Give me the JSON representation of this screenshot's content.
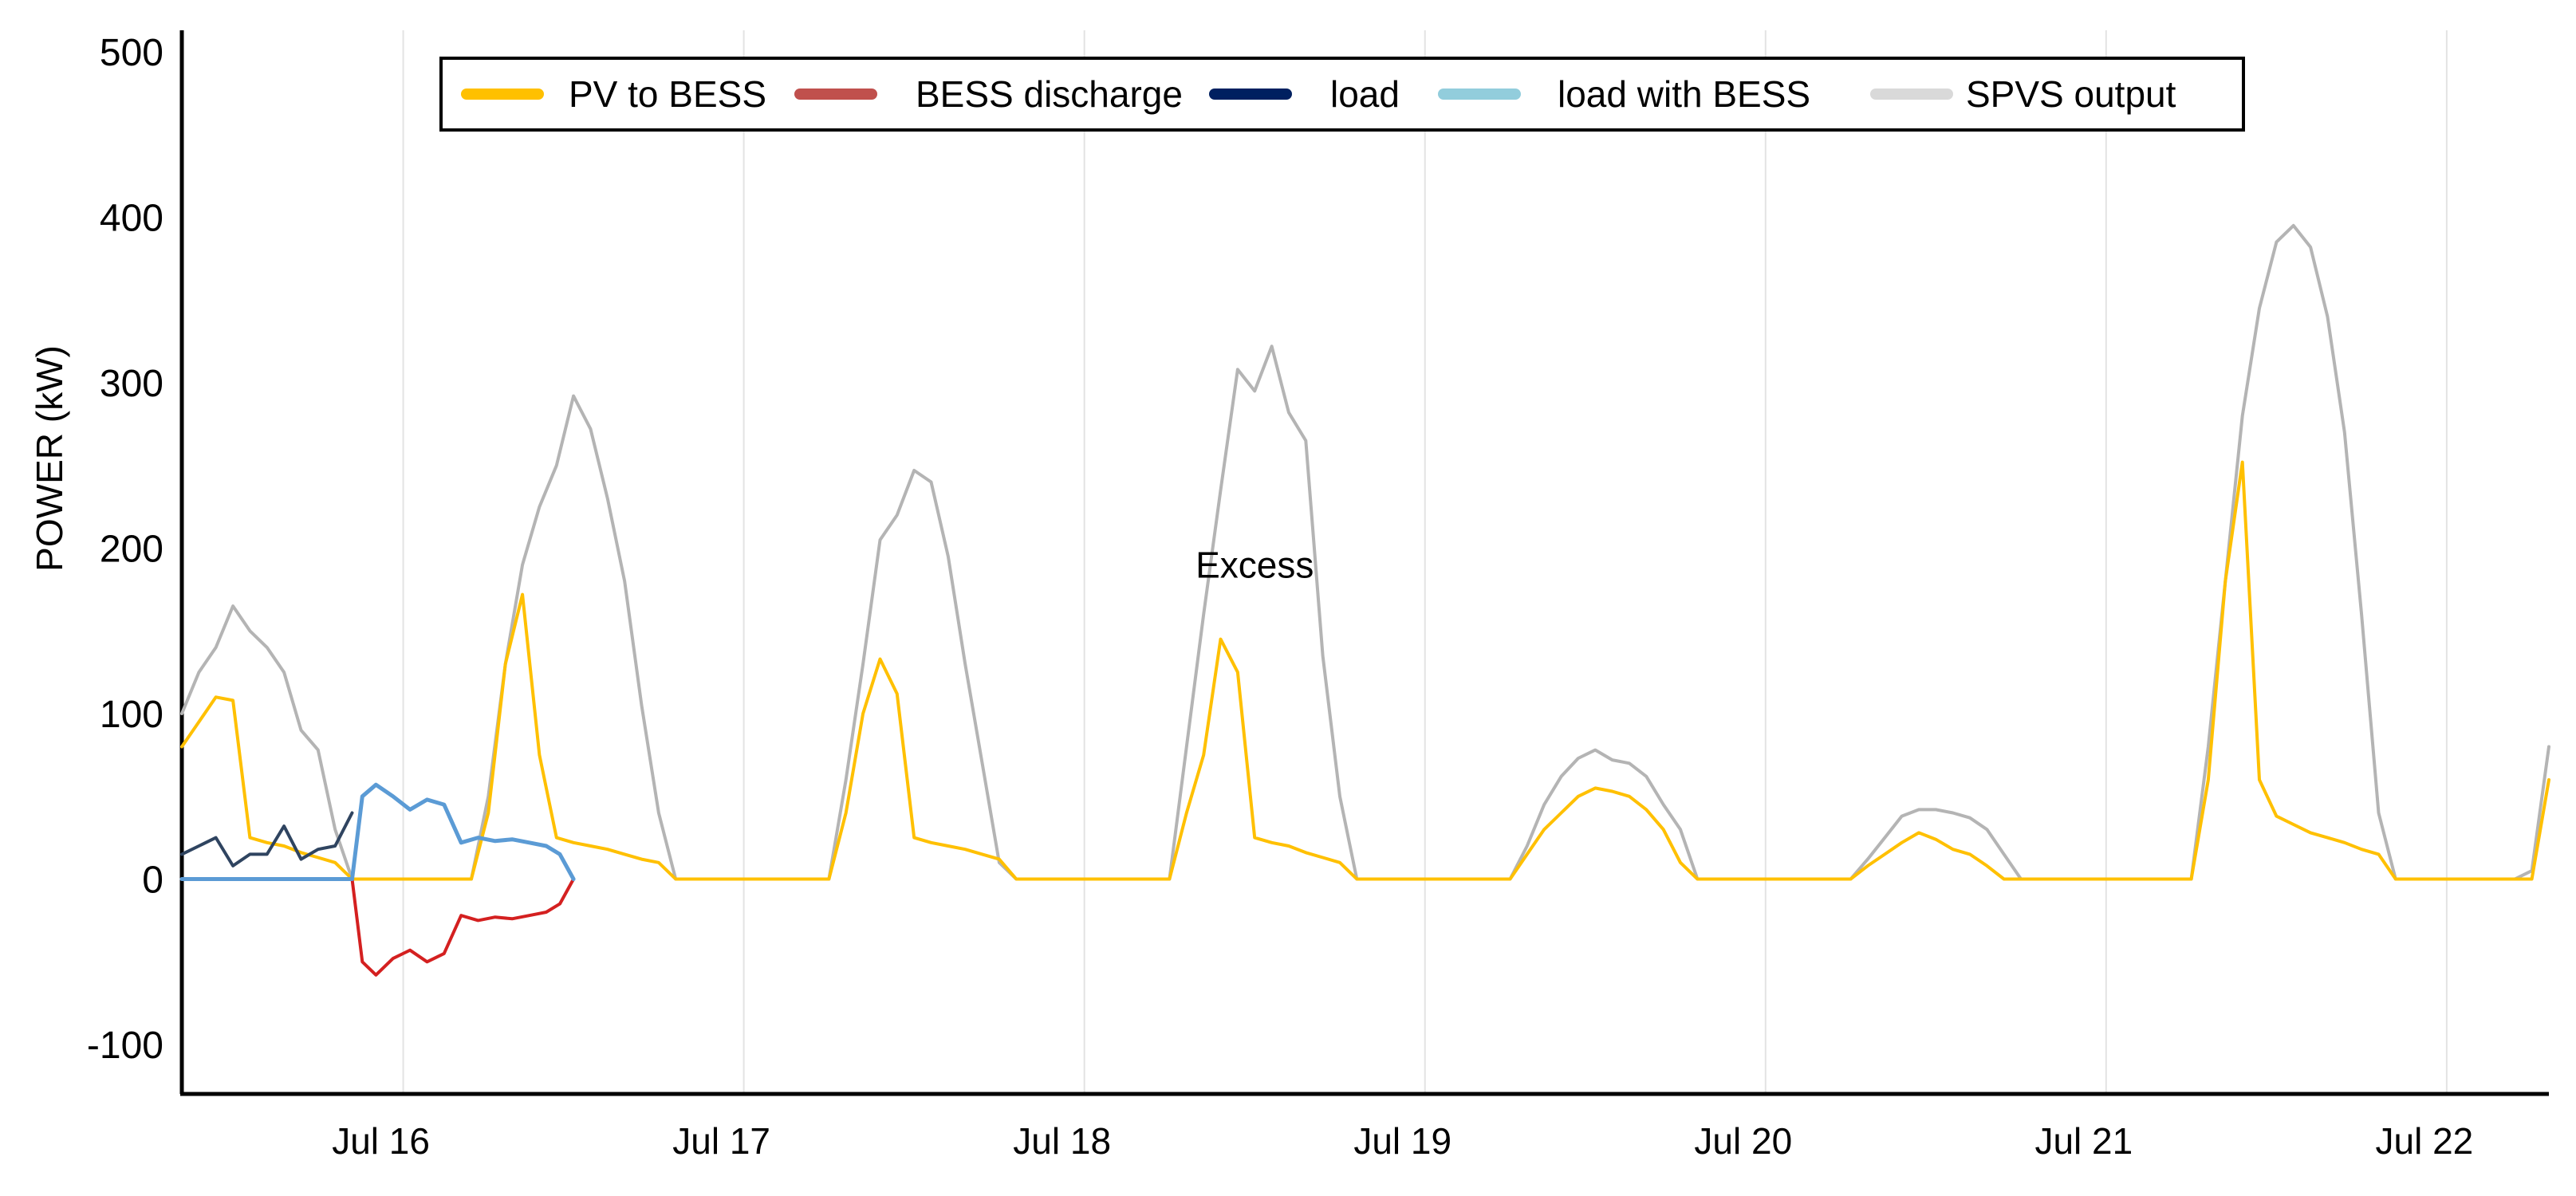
{
  "chart_data": {
    "type": "line",
    "title": "",
    "xlabel": "",
    "ylabel": "POWER (kW)",
    "ylim": [
      -100,
      500
    ],
    "yticks": [
      {
        "value": 500,
        "label": "500"
      },
      {
        "value": 400,
        "label": "400"
      },
      {
        "value": 300,
        "label": "300"
      },
      {
        "value": 200,
        "label": "200"
      },
      {
        "value": 100,
        "label": "100"
      },
      {
        "value": 0,
        "label": "0"
      },
      {
        "value": -100,
        "label": "-100"
      }
    ],
    "xlim": [
      15.35,
      22.3
    ],
    "xticks": [
      {
        "value": 16,
        "label": "Jul 16"
      },
      {
        "value": 17,
        "label": "Jul 17"
      },
      {
        "value": 18,
        "label": "Jul 18"
      },
      {
        "value": 19,
        "label": "Jul 19"
      },
      {
        "value": 20,
        "label": "Jul 20"
      },
      {
        "value": 21,
        "label": "Jul 21"
      },
      {
        "value": 22,
        "label": "Jul 22"
      }
    ],
    "grid": "vertical",
    "annotations": [
      {
        "text": "Excess",
        "x": 18.5,
        "y": 190
      }
    ],
    "legend": {
      "position": "top-center",
      "entries": [
        {
          "label": "PV to BESS",
          "color": "#FFC000"
        },
        {
          "label": "BESS discharge",
          "color": "#C0504D"
        },
        {
          "label": "load",
          "color": "#002060"
        },
        {
          "label": "load with BESS",
          "color": "#92CDDC"
        },
        {
          "label": "SPVS output",
          "color": "#D9D9D9"
        }
      ]
    },
    "series": [
      {
        "name": "SPVS output",
        "color": "#B4B4B4",
        "points": [
          [
            15.35,
            100
          ],
          [
            15.4,
            125
          ],
          [
            15.45,
            140
          ],
          [
            15.5,
            165
          ],
          [
            15.55,
            150
          ],
          [
            15.6,
            140
          ],
          [
            15.65,
            125
          ],
          [
            15.7,
            90
          ],
          [
            15.75,
            78
          ],
          [
            15.8,
            30
          ],
          [
            15.85,
            0
          ],
          [
            16.2,
            0
          ],
          [
            16.25,
            50
          ],
          [
            16.3,
            130
          ],
          [
            16.35,
            190
          ],
          [
            16.4,
            225
          ],
          [
            16.45,
            250
          ],
          [
            16.5,
            292
          ],
          [
            16.55,
            272
          ],
          [
            16.6,
            230
          ],
          [
            16.65,
            180
          ],
          [
            16.7,
            105
          ],
          [
            16.75,
            40
          ],
          [
            16.8,
            0
          ],
          [
            17.25,
            0
          ],
          [
            17.3,
            60
          ],
          [
            17.35,
            130
          ],
          [
            17.4,
            205
          ],
          [
            17.45,
            220
          ],
          [
            17.5,
            247
          ],
          [
            17.55,
            240
          ],
          [
            17.6,
            195
          ],
          [
            17.65,
            130
          ],
          [
            17.7,
            70
          ],
          [
            17.75,
            10
          ],
          [
            17.8,
            0
          ],
          [
            18.25,
            0
          ],
          [
            18.3,
            80
          ],
          [
            18.35,
            160
          ],
          [
            18.4,
            235
          ],
          [
            18.45,
            308
          ],
          [
            18.5,
            295
          ],
          [
            18.55,
            322
          ],
          [
            18.6,
            282
          ],
          [
            18.65,
            265
          ],
          [
            18.7,
            135
          ],
          [
            18.75,
            50
          ],
          [
            18.8,
            0
          ],
          [
            19.25,
            0
          ],
          [
            19.3,
            20
          ],
          [
            19.35,
            45
          ],
          [
            19.4,
            62
          ],
          [
            19.45,
            73
          ],
          [
            19.5,
            78
          ],
          [
            19.55,
            72
          ],
          [
            19.6,
            70
          ],
          [
            19.65,
            62
          ],
          [
            19.7,
            45
          ],
          [
            19.75,
            30
          ],
          [
            19.8,
            0
          ],
          [
            20.25,
            0
          ],
          [
            20.3,
            12
          ],
          [
            20.35,
            25
          ],
          [
            20.4,
            38
          ],
          [
            20.45,
            42
          ],
          [
            20.5,
            42
          ],
          [
            20.55,
            40
          ],
          [
            20.6,
            37
          ],
          [
            20.65,
            30
          ],
          [
            20.7,
            15
          ],
          [
            20.75,
            0
          ],
          [
            21.25,
            0
          ],
          [
            21.3,
            80
          ],
          [
            21.35,
            180
          ],
          [
            21.4,
            280
          ],
          [
            21.45,
            345
          ],
          [
            21.5,
            385
          ],
          [
            21.55,
            395
          ],
          [
            21.6,
            382
          ],
          [
            21.65,
            340
          ],
          [
            21.7,
            270
          ],
          [
            21.75,
            160
          ],
          [
            21.8,
            40
          ],
          [
            21.85,
            0
          ],
          [
            22.2,
            0
          ],
          [
            22.25,
            5
          ],
          [
            22.3,
            80
          ]
        ]
      },
      {
        "name": "PV to BESS",
        "color": "#FFC000",
        "points": [
          [
            15.35,
            80
          ],
          [
            15.4,
            95
          ],
          [
            15.45,
            110
          ],
          [
            15.5,
            108
          ],
          [
            15.55,
            25
          ],
          [
            15.6,
            22
          ],
          [
            15.65,
            20
          ],
          [
            15.7,
            16
          ],
          [
            15.75,
            13
          ],
          [
            15.8,
            10
          ],
          [
            15.85,
            0
          ],
          [
            16.2,
            0
          ],
          [
            16.25,
            40
          ],
          [
            16.3,
            130
          ],
          [
            16.35,
            172
          ],
          [
            16.4,
            75
          ],
          [
            16.45,
            25
          ],
          [
            16.5,
            22
          ],
          [
            16.55,
            20
          ],
          [
            16.6,
            18
          ],
          [
            16.65,
            15
          ],
          [
            16.7,
            12
          ],
          [
            16.75,
            10
          ],
          [
            16.8,
            0
          ],
          [
            17.25,
            0
          ],
          [
            17.3,
            40
          ],
          [
            17.35,
            100
          ],
          [
            17.4,
            133
          ],
          [
            17.45,
            112
          ],
          [
            17.5,
            25
          ],
          [
            17.55,
            22
          ],
          [
            17.6,
            20
          ],
          [
            17.65,
            18
          ],
          [
            17.7,
            15
          ],
          [
            17.75,
            12
          ],
          [
            17.8,
            0
          ],
          [
            18.25,
            0
          ],
          [
            18.3,
            40
          ],
          [
            18.35,
            75
          ],
          [
            18.4,
            145
          ],
          [
            18.45,
            125
          ],
          [
            18.5,
            25
          ],
          [
            18.55,
            22
          ],
          [
            18.6,
            20
          ],
          [
            18.65,
            16
          ],
          [
            18.7,
            13
          ],
          [
            18.75,
            10
          ],
          [
            18.8,
            0
          ],
          [
            19.25,
            0
          ],
          [
            19.3,
            15
          ],
          [
            19.35,
            30
          ],
          [
            19.4,
            40
          ],
          [
            19.45,
            50
          ],
          [
            19.5,
            55
          ],
          [
            19.55,
            53
          ],
          [
            19.6,
            50
          ],
          [
            19.65,
            42
          ],
          [
            19.7,
            30
          ],
          [
            19.75,
            10
          ],
          [
            19.8,
            0
          ],
          [
            20.25,
            0
          ],
          [
            20.3,
            8
          ],
          [
            20.35,
            15
          ],
          [
            20.4,
            22
          ],
          [
            20.45,
            28
          ],
          [
            20.5,
            24
          ],
          [
            20.55,
            18
          ],
          [
            20.6,
            15
          ],
          [
            20.65,
            8
          ],
          [
            20.7,
            0
          ],
          [
            21.25,
            0
          ],
          [
            21.3,
            60
          ],
          [
            21.35,
            180
          ],
          [
            21.4,
            252
          ],
          [
            21.45,
            60
          ],
          [
            21.5,
            38
          ],
          [
            21.55,
            33
          ],
          [
            21.6,
            28
          ],
          [
            21.65,
            25
          ],
          [
            21.7,
            22
          ],
          [
            21.75,
            18
          ],
          [
            21.8,
            15
          ],
          [
            21.85,
            0
          ],
          [
            22.25,
            0
          ],
          [
            22.3,
            60
          ]
        ]
      },
      {
        "name": "BESS discharge",
        "color": "#D42020",
        "points": [
          [
            15.85,
            0
          ],
          [
            15.88,
            -50
          ],
          [
            15.92,
            -58
          ],
          [
            15.97,
            -48
          ],
          [
            16.02,
            -43
          ],
          [
            16.07,
            -50
          ],
          [
            16.12,
            -45
          ],
          [
            16.17,
            -22
          ],
          [
            16.22,
            -25
          ],
          [
            16.27,
            -23
          ],
          [
            16.32,
            -24
          ],
          [
            16.37,
            -22
          ],
          [
            16.42,
            -20
          ],
          [
            16.46,
            -15
          ],
          [
            16.5,
            0
          ]
        ]
      },
      {
        "name": "load",
        "color": "#2F4460",
        "points": [
          [
            15.35,
            15
          ],
          [
            15.4,
            20
          ],
          [
            15.45,
            25
          ],
          [
            15.5,
            8
          ],
          [
            15.55,
            15
          ],
          [
            15.6,
            15
          ],
          [
            15.65,
            32
          ],
          [
            15.7,
            12
          ],
          [
            15.75,
            18
          ],
          [
            15.8,
            20
          ],
          [
            15.85,
            40
          ]
        ]
      },
      {
        "name": "load with BESS",
        "color": "#5B9BD5",
        "points": [
          [
            15.35,
            0
          ],
          [
            15.85,
            0
          ],
          [
            15.88,
            50
          ],
          [
            15.92,
            57
          ],
          [
            15.97,
            50
          ],
          [
            16.02,
            42
          ],
          [
            16.07,
            48
          ],
          [
            16.12,
            45
          ],
          [
            16.17,
            22
          ],
          [
            16.22,
            25
          ],
          [
            16.27,
            23
          ],
          [
            16.32,
            24
          ],
          [
            16.37,
            22
          ],
          [
            16.42,
            20
          ],
          [
            16.46,
            15
          ],
          [
            16.5,
            0
          ]
        ]
      }
    ]
  }
}
